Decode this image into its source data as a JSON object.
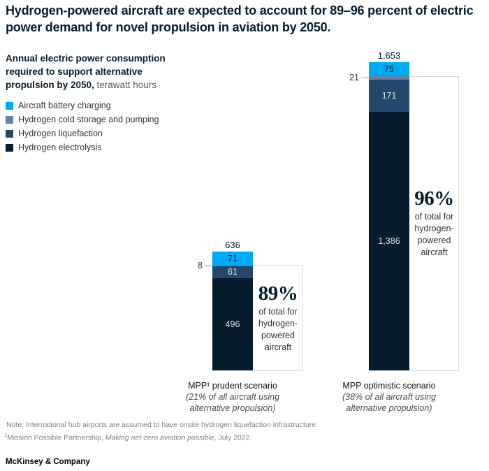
{
  "title": "Hydrogen-powered aircraft are expected to account for 89–96 percent of electric power demand for novel propulsion in aviation by 2050.",
  "subtitle": {
    "bold": "Annual electric power consumption required to support alternative propulsion by 2050,",
    "unit": " terawatt hours"
  },
  "footnote": {
    "note": "Note: International hub airports are assumed to have onsite hydrogen liquefaction infrastructure.",
    "source_sup": "1",
    "source_pre": "Mission Possible Partnership, ",
    "source_italic": "Making net-zero aviation possible",
    "source_post": ", July 2022."
  },
  "brand": "McKinsey & Company",
  "chart_data": {
    "type": "stacked-bar",
    "unit": "terawatt hours",
    "ylim": [
      0,
      1653
    ],
    "gridlines": false,
    "legend_position": "top-left",
    "categories": [
      "MPP¹ prudent scenario",
      "MPP optimistic scenario"
    ],
    "series": [
      {
        "name": "Aircraft battery charging",
        "color": "#00A9F4",
        "values": [
          71,
          75
        ]
      },
      {
        "name": "Hydrogen cold storage and pumping",
        "color": "#5E84A9",
        "values": [
          8,
          21
        ]
      },
      {
        "name": "Hydrogen liquefaction",
        "color": "#22496D",
        "values": [
          61,
          171
        ]
      },
      {
        "name": "Hydrogen electrolysis",
        "color": "#051C2C",
        "values": [
          496,
          1386
        ]
      }
    ],
    "bars": [
      {
        "total": 636,
        "total_label": "636",
        "segments": [
          {
            "id": "battery-charging",
            "value": 71,
            "label": "71",
            "color": "#00A9F4",
            "label_position": "inside",
            "label_theme": "dark"
          },
          {
            "id": "cold-storage",
            "value": 8,
            "label": "8",
            "color": "#5E84A9",
            "label_position": "outside"
          },
          {
            "id": "liquefaction",
            "value": 61,
            "label": "61",
            "color": "#22496D",
            "label_position": "inside",
            "label_theme": "light"
          },
          {
            "id": "electrolysis",
            "value": 496,
            "label": "496",
            "color": "#051C2C",
            "label_position": "inside",
            "label_theme": "light"
          }
        ],
        "callout_pct": "89%",
        "callout_caption": "of total for hydrogen-powered aircraft",
        "scenario": "MPP¹ prudent scenario",
        "scenario_sub1": "(21% of all aircraft using",
        "scenario_sub2": "alternative propulsion)"
      },
      {
        "total": 1653,
        "total_label": "1,653",
        "segments": [
          {
            "id": "battery-charging",
            "value": 75,
            "label": "75",
            "color": "#00A9F4",
            "label_position": "inside",
            "label_theme": "dark"
          },
          {
            "id": "cold-storage",
            "value": 21,
            "label": "21",
            "color": "#5E84A9",
            "label_position": "outside"
          },
          {
            "id": "liquefaction",
            "value": 171,
            "label": "171",
            "color": "#22496D",
            "label_position": "inside",
            "label_theme": "light"
          },
          {
            "id": "electrolysis",
            "value": 1386,
            "label": "1,386",
            "color": "#051C2C",
            "label_position": "inside",
            "label_theme": "light"
          }
        ],
        "callout_pct": "96%",
        "callout_caption": "of total for hydrogen-powered aircraft",
        "scenario": "MPP optimistic scenario",
        "scenario_sub1": "(38% of all aircraft using",
        "scenario_sub2": "alternative propulsion)"
      }
    ]
  }
}
